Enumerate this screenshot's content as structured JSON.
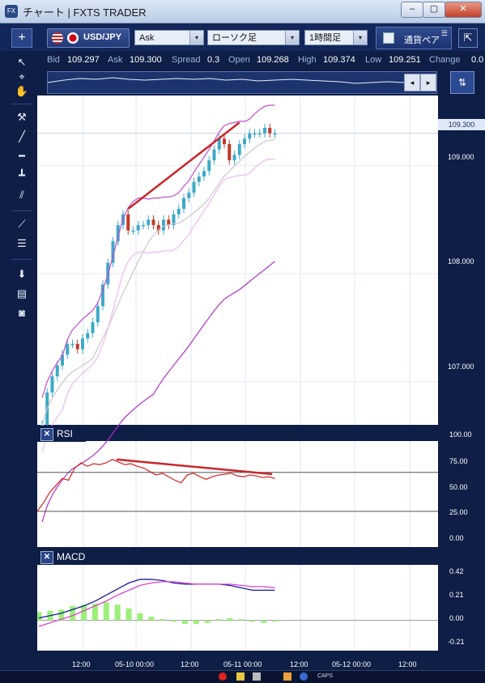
{
  "window": {
    "title": "チャート | FXTS TRADER",
    "title_icon": "FX",
    "min_label": "‒",
    "max_label": "▢",
    "close_label": "✕"
  },
  "toolbar": {
    "plus_label": "+",
    "symbol": "USD/JPY",
    "price_side": "Ask",
    "chart_type": "ローソク足",
    "timeframe": "1時間足",
    "currency_button": "通貨ペア",
    "arrow_label": "▾"
  },
  "quote": {
    "bid_label": "Bid",
    "bid": "109.297",
    "ask_label": "Ask",
    "ask": "109.300",
    "spread_label": "Spread",
    "spread": "0.3",
    "open_label": "Open",
    "open": "109.268",
    "high_label": "High",
    "high": "109.374",
    "low_label": "Low",
    "low": "109.251",
    "change_label": "Change",
    "change": "0.0"
  },
  "price_axis": [
    "109.000",
    "108.000",
    "107.000"
  ],
  "current_price": "109.300",
  "rsi": {
    "label": "RSI",
    "axis": [
      "100.00",
      "75.00",
      "50.00",
      "25.00",
      "0.00"
    ]
  },
  "macd": {
    "label": "MACD",
    "axis": [
      "0.42",
      "0.21",
      "0.00",
      "-0.21"
    ]
  },
  "time_axis": [
    "12:00",
    "05-10 00:00",
    "12:00",
    "05-11 00:00",
    "12:00",
    "05-12 00:00",
    "12:00"
  ],
  "taskbar": {
    "caps": "CAPS"
  },
  "colors": {
    "background": "#0e1e46",
    "chart_bg": "#ffffff",
    "candle_up": "#3ea9c7",
    "candle_down": "#c0392b",
    "trend_line": "#c9272b",
    "rsi_line": "#d82020",
    "macd_line": "#1a1aa0",
    "signal_line": "#e040d0",
    "histogram": "#9cf07a"
  },
  "chart_data": [
    {
      "type": "line",
      "title": "",
      "series": [
        {
          "values": [
            106.6,
            106.9,
            107.05,
            107.15,
            107.25,
            107.35,
            107.35,
            107.3,
            107.4,
            107.45,
            107.55,
            107.7,
            107.9,
            108.1,
            108.3,
            108.45,
            108.55,
            108.4,
            108.4,
            108.45,
            108.45,
            108.5,
            108.45,
            108.4,
            108.5,
            108.45,
            108.55,
            108.6,
            108.7,
            108.75,
            108.85,
            108.9,
            108.95,
            109.05,
            109.15,
            109.25,
            109.2,
            109.05,
            109.1,
            109.2,
            109.25,
            109.3,
            109.3,
            109.3,
            109.35,
            109.3,
            109.3
          ]
        }
      ],
      "categories_labels": [
        "12:00",
        "05-10 00:00",
        "12:00",
        "05-11 00:00",
        "12:00",
        "05-12 00:00",
        "12:00"
      ],
      "ylim": [
        106.6,
        109.65
      ]
    },
    {
      "type": "line",
      "title": "RSI",
      "series": [
        {
          "values": [
            30,
            40,
            52,
            60,
            68,
            66,
            80,
            86,
            82,
            85,
            84,
            86,
            90,
            87,
            84,
            85,
            82,
            80,
            76,
            72,
            74,
            70,
            66,
            63,
            72,
            74,
            70,
            67,
            70,
            72,
            73,
            74,
            71,
            70,
            72,
            71,
            69,
            70,
            68
          ]
        }
      ],
      "ylim": [
        0,
        100
      ]
    },
    {
      "type": "bar",
      "title": "MACD",
      "series": [
        {
          "name": "MACD",
          "values": [
            0.02,
            0.04,
            0.06,
            0.09,
            0.12,
            0.16,
            0.21,
            0.26,
            0.31,
            0.34,
            0.34,
            0.33,
            0.31,
            0.3,
            0.3,
            0.3,
            0.3,
            0.29,
            0.27,
            0.25,
            0.25,
            0.25
          ]
        },
        {
          "name": "Signal",
          "values": [
            -0.05,
            -0.02,
            0.01,
            0.04,
            0.08,
            0.12,
            0.16,
            0.21,
            0.25,
            0.29,
            0.31,
            0.32,
            0.32,
            0.31,
            0.3,
            0.3,
            0.3,
            0.3,
            0.29,
            0.28,
            0.28,
            0.27
          ]
        },
        {
          "name": "Histogram",
          "values": [
            0.07,
            0.08,
            0.09,
            0.12,
            0.13,
            0.14,
            0.15,
            0.13,
            0.1,
            0.06,
            0.03,
            0.01,
            -0.01,
            -0.03,
            -0.03,
            -0.02,
            0.01,
            0.02,
            0.01,
            -0.01,
            -0.02,
            -0.01
          ]
        }
      ],
      "ylim": [
        -0.25,
        0.46
      ]
    }
  ]
}
